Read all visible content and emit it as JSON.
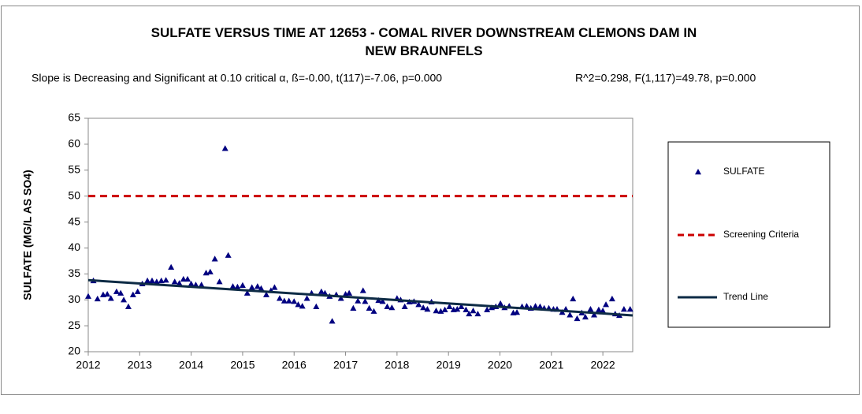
{
  "chart_data": {
    "type": "scatter",
    "title": "SULFATE VERSUS TIME AT 12653 - COMAL RIVER DOWNSTREAM CLEMONS DAM IN NEW BRAUNFELS",
    "subtitle_left": "Slope is Decreasing and Significant at 0.10 critical α, ß=-0.00, t(117)=-7.06, p=0.000",
    "subtitle_right": "R^2=0.298,  F(1,117)=49.78, p=0.000",
    "y_label": "SULFATE (MG/L AS SO4)",
    "xlim": [
      2012,
      2022.58
    ],
    "xticks": [
      2012,
      2013,
      2014,
      2015,
      2016,
      2017,
      2018,
      2019,
      2020,
      2021,
      2022
    ],
    "ylim": [
      20,
      65
    ],
    "yticks": [
      20,
      25,
      30,
      35,
      40,
      45,
      50,
      55,
      60,
      65
    ],
    "grid": false,
    "legend": "right",
    "series": [
      {
        "name": "SULFATE",
        "style": "marker",
        "color": "#000080",
        "x": [
          2012.0,
          2012.1,
          2012.18,
          2012.29,
          2012.37,
          2012.44,
          2012.55,
          2012.63,
          2012.69,
          2012.78,
          2012.87,
          2012.96,
          2013.05,
          2013.15,
          2013.24,
          2013.33,
          2013.42,
          2013.51,
          2013.61,
          2013.68,
          2013.77,
          2013.85,
          2013.93,
          2014.0,
          2014.09,
          2014.2,
          2014.29,
          2014.37,
          2014.46,
          2014.55,
          2014.66,
          2014.72,
          2014.81,
          2014.9,
          2015.0,
          2015.09,
          2015.18,
          2015.29,
          2015.36,
          2015.46,
          2015.55,
          2015.62,
          2015.72,
          2015.81,
          2015.9,
          2016.0,
          2016.08,
          2016.16,
          2016.25,
          2016.34,
          2016.43,
          2016.53,
          2016.6,
          2016.69,
          2016.74,
          2016.82,
          2016.91,
          2017.0,
          2017.07,
          2017.15,
          2017.24,
          2017.34,
          2017.38,
          2017.46,
          2017.55,
          2017.64,
          2017.72,
          2017.81,
          2017.9,
          2018.0,
          2018.07,
          2018.15,
          2018.24,
          2018.33,
          2018.42,
          2018.51,
          2018.59,
          2018.67,
          2018.76,
          2018.85,
          2018.93,
          2019.02,
          2019.1,
          2019.17,
          2019.25,
          2019.34,
          2019.4,
          2019.48,
          2019.57,
          2019.75,
          2019.84,
          2019.92,
          2020.01,
          2020.09,
          2020.18,
          2020.26,
          2020.33,
          2020.43,
          2020.52,
          2020.6,
          2020.69,
          2020.78,
          2020.86,
          2020.95,
          2021.04,
          2021.11,
          2021.21,
          2021.28,
          2021.36,
          2021.42,
          2021.5,
          2021.59,
          2021.66,
          2021.76,
          2021.83,
          2021.92,
          2022.0,
          2022.06,
          2022.18,
          2022.24,
          2022.32,
          2022.41,
          2022.53
        ],
        "values": [
          30.7,
          33.7,
          30.2,
          31.0,
          31.1,
          30.3,
          31.6,
          31.3,
          30.0,
          28.7,
          31.0,
          31.6,
          33.1,
          33.7,
          33.7,
          33.5,
          33.7,
          33.8,
          36.3,
          33.5,
          33.2,
          34.0,
          34.0,
          33.1,
          32.9,
          32.9,
          35.2,
          35.4,
          37.9,
          33.5,
          59.2,
          38.6,
          32.6,
          32.5,
          32.8,
          31.3,
          32.4,
          32.6,
          32.2,
          31.0,
          31.8,
          32.4,
          30.3,
          29.8,
          29.8,
          29.7,
          29.1,
          28.8,
          30.3,
          31.3,
          28.7,
          31.6,
          31.3,
          30.7,
          25.9,
          31.0,
          30.3,
          31.1,
          31.3,
          28.4,
          29.8,
          31.8,
          29.7,
          28.4,
          27.8,
          29.9,
          29.7,
          28.7,
          28.5,
          30.3,
          30.0,
          28.7,
          29.6,
          29.7,
          29.1,
          28.5,
          28.2,
          29.6,
          27.9,
          27.8,
          28.1,
          28.7,
          28.1,
          28.2,
          28.7,
          28.1,
          27.3,
          27.9,
          27.3,
          28.1,
          28.5,
          28.7,
          29.3,
          28.5,
          28.8,
          27.5,
          27.6,
          28.7,
          28.8,
          28.4,
          28.8,
          28.7,
          28.4,
          28.4,
          28.2,
          28.2,
          27.6,
          28.2,
          27.1,
          30.2,
          26.4,
          27.5,
          26.7,
          28.2,
          27.1,
          28.1,
          27.9,
          29.1,
          30.2,
          27.3,
          27.0,
          28.2,
          28.2
        ]
      },
      {
        "name": "Screening Criteria",
        "style": "dash",
        "color": "#cc0000",
        "x": [
          2012,
          2022.58
        ],
        "values": [
          50,
          50
        ]
      },
      {
        "name": "Trend Line",
        "style": "line",
        "color": "#0d2b45",
        "x": [
          2012,
          2022.58
        ],
        "values": [
          33.8,
          27.0
        ]
      }
    ]
  }
}
